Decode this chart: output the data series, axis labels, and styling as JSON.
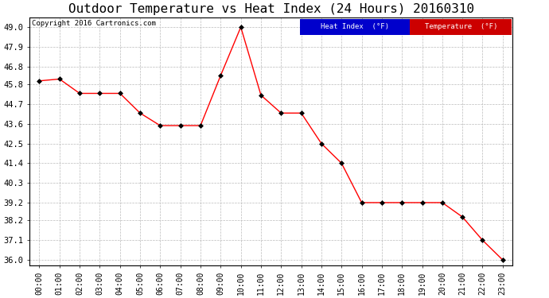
{
  "title": "Outdoor Temperature vs Heat Index (24 Hours) 20160310",
  "copyright": "Copyright 2016 Cartronics.com",
  "x_labels": [
    "00:00",
    "01:00",
    "02:00",
    "03:00",
    "04:00",
    "05:00",
    "06:00",
    "07:00",
    "08:00",
    "09:00",
    "10:00",
    "11:00",
    "12:00",
    "13:00",
    "14:00",
    "15:00",
    "16:00",
    "17:00",
    "18:00",
    "19:00",
    "20:00",
    "21:00",
    "22:00",
    "23:00"
  ],
  "temperature": [
    46.0,
    46.1,
    45.3,
    45.3,
    45.3,
    44.2,
    43.5,
    43.5,
    43.5,
    46.3,
    49.0,
    45.2,
    44.2,
    44.2,
    42.5,
    41.4,
    39.2,
    39.2,
    39.2,
    39.2,
    39.2,
    38.4,
    37.1,
    36.0
  ],
  "temp_color": "#ff0000",
  "heat_color": "#ff0000",
  "ylim_min": 35.7,
  "ylim_max": 49.55,
  "yticks": [
    36.0,
    37.1,
    38.2,
    39.2,
    40.3,
    41.4,
    42.5,
    43.6,
    44.7,
    45.8,
    46.8,
    47.9,
    49.0
  ],
  "background_color": "#ffffff",
  "grid_color": "#bbbbbb",
  "title_fontsize": 11.5,
  "legend_heat_bg": "#0000cc",
  "legend_temp_bg": "#cc0000",
  "legend_text_color": "#ffffff"
}
